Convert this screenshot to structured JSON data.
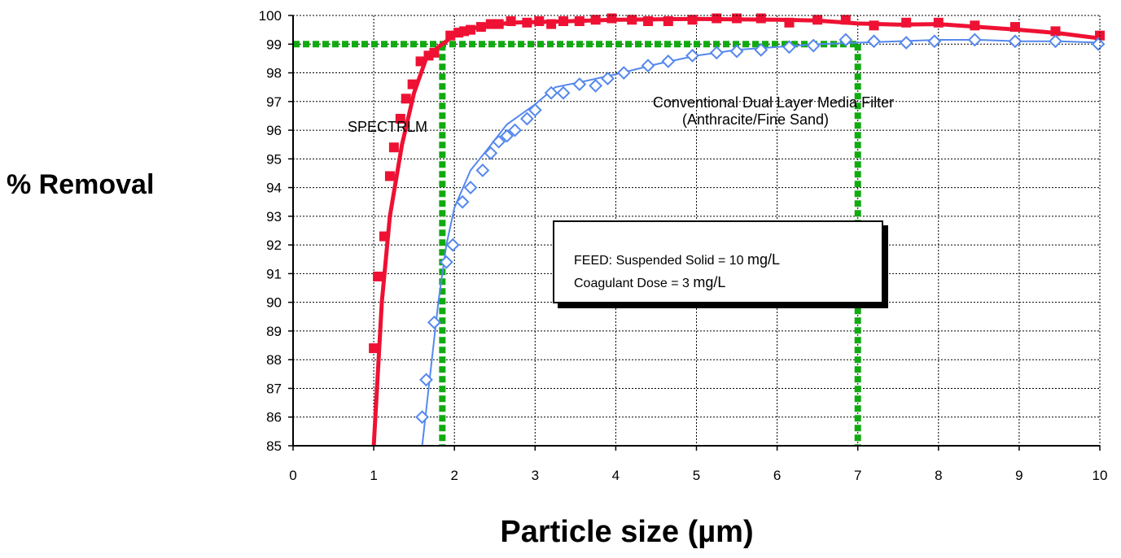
{
  "chart_data": {
    "type": "scatter",
    "xlabel": "Particle size (µm)",
    "ylabel": "% Removal",
    "xlim": [
      0,
      10
    ],
    "ylim": [
      85,
      100
    ],
    "x_ticks": [
      "0",
      "1",
      "2",
      "3",
      "4",
      "5",
      "6",
      "7",
      "8",
      "9",
      "10"
    ],
    "y_ticks": [
      "85",
      "86",
      "87",
      "88",
      "89",
      "90",
      "91",
      "92",
      "93",
      "94",
      "95",
      "96",
      "97",
      "98",
      "99",
      "100"
    ],
    "grid": true,
    "annotations": {
      "spectrlm_label": "SPECTRLM",
      "conventional_label_line1": "Conventional Dual Layer Media Filter",
      "conventional_label_line2": "(Anthracite/Fine Sand)",
      "feed_box": {
        "line1_prefix": "FEED: Suspended Solid = 10 ",
        "line1_unit": "mg/L",
        "line2_prefix": "Coagulant Dose = 3  ",
        "line2_unit": "mg/L"
      }
    },
    "reference_lines": {
      "color": "#11aa11",
      "y_level": 99,
      "x_values": [
        1.85,
        7.0
      ]
    },
    "series": [
      {
        "label_ref": "SPECTRLM",
        "color": "#ee1133",
        "marker": "square",
        "points": [
          [
            1.0,
            88.4
          ],
          [
            1.05,
            90.9
          ],
          [
            1.13,
            92.3
          ],
          [
            1.2,
            94.4
          ],
          [
            1.25,
            95.4
          ],
          [
            1.33,
            96.4
          ],
          [
            1.4,
            97.1
          ],
          [
            1.48,
            97.6
          ],
          [
            1.58,
            98.4
          ],
          [
            1.68,
            98.6
          ],
          [
            1.75,
            98.7
          ],
          [
            1.95,
            99.3
          ],
          [
            2.05,
            99.4
          ],
          [
            2.12,
            99.45
          ],
          [
            2.2,
            99.5
          ],
          [
            2.33,
            99.6
          ],
          [
            2.45,
            99.7
          ],
          [
            2.55,
            99.7
          ],
          [
            2.7,
            99.8
          ],
          [
            2.9,
            99.75
          ],
          [
            3.05,
            99.8
          ],
          [
            3.2,
            99.7
          ],
          [
            3.35,
            99.8
          ],
          [
            3.55,
            99.8
          ],
          [
            3.75,
            99.85
          ],
          [
            3.95,
            99.9
          ],
          [
            4.2,
            99.85
          ],
          [
            4.4,
            99.8
          ],
          [
            4.65,
            99.8
          ],
          [
            4.95,
            99.85
          ],
          [
            5.25,
            99.9
          ],
          [
            5.5,
            99.9
          ],
          [
            5.8,
            99.9
          ],
          [
            6.15,
            99.75
          ],
          [
            6.5,
            99.85
          ],
          [
            6.85,
            99.85
          ],
          [
            7.2,
            99.65
          ],
          [
            7.6,
            99.75
          ],
          [
            8.0,
            99.75
          ],
          [
            8.45,
            99.65
          ],
          [
            8.95,
            99.6
          ],
          [
            9.45,
            99.45
          ],
          [
            10.0,
            99.3
          ]
        ],
        "curve": [
          [
            1.0,
            85.0
          ],
          [
            1.1,
            90.0
          ],
          [
            1.2,
            93.0
          ],
          [
            1.35,
            95.5
          ],
          [
            1.5,
            97.3
          ],
          [
            1.65,
            98.5
          ],
          [
            1.8,
            98.9
          ],
          [
            1.9,
            99.1
          ],
          [
            2.0,
            99.35
          ],
          [
            2.3,
            99.6
          ],
          [
            2.7,
            99.75
          ],
          [
            3.2,
            99.78
          ],
          [
            4.0,
            99.85
          ],
          [
            5.0,
            99.88
          ],
          [
            6.0,
            99.85
          ],
          [
            6.5,
            99.82
          ],
          [
            7.0,
            99.72
          ],
          [
            7.5,
            99.68
          ],
          [
            8.0,
            99.7
          ],
          [
            8.5,
            99.6
          ],
          [
            9.0,
            99.5
          ],
          [
            9.5,
            99.38
          ],
          [
            10.0,
            99.2
          ]
        ]
      },
      {
        "label_ref": "Conventional Dual Layer Media Filter",
        "color": "#5588ee",
        "marker": "diamond",
        "points": [
          [
            1.6,
            86.0
          ],
          [
            1.65,
            87.3
          ],
          [
            1.75,
            89.3
          ],
          [
            1.9,
            91.4
          ],
          [
            1.98,
            92.0
          ],
          [
            2.1,
            93.5
          ],
          [
            2.2,
            94.0
          ],
          [
            2.35,
            94.6
          ],
          [
            2.45,
            95.2
          ],
          [
            2.55,
            95.6
          ],
          [
            2.65,
            95.8
          ],
          [
            2.75,
            96.0
          ],
          [
            2.9,
            96.4
          ],
          [
            3.0,
            96.7
          ],
          [
            3.2,
            97.3
          ],
          [
            3.35,
            97.3
          ],
          [
            3.55,
            97.6
          ],
          [
            3.75,
            97.55
          ],
          [
            3.9,
            97.8
          ],
          [
            4.1,
            98.0
          ],
          [
            4.4,
            98.25
          ],
          [
            4.65,
            98.4
          ],
          [
            4.95,
            98.6
          ],
          [
            5.25,
            98.7
          ],
          [
            5.5,
            98.75
          ],
          [
            5.8,
            98.8
          ],
          [
            6.15,
            98.9
          ],
          [
            6.45,
            98.95
          ],
          [
            6.85,
            99.15
          ],
          [
            7.2,
            99.1
          ],
          [
            7.6,
            99.05
          ],
          [
            7.95,
            99.1
          ],
          [
            8.45,
            99.15
          ],
          [
            8.95,
            99.1
          ],
          [
            9.45,
            99.1
          ],
          [
            9.98,
            99.0
          ]
        ],
        "curve": [
          [
            1.6,
            85.0
          ],
          [
            1.7,
            87.5
          ],
          [
            1.8,
            90.0
          ],
          [
            1.9,
            92.0
          ],
          [
            2.0,
            93.3
          ],
          [
            2.2,
            94.6
          ],
          [
            2.4,
            95.3
          ],
          [
            2.65,
            96.2
          ],
          [
            3.0,
            96.9
          ],
          [
            3.25,
            97.5
          ],
          [
            3.6,
            97.7
          ],
          [
            4.0,
            97.95
          ],
          [
            4.5,
            98.3
          ],
          [
            5.0,
            98.6
          ],
          [
            5.5,
            98.8
          ],
          [
            6.0,
            98.9
          ],
          [
            6.5,
            99.0
          ],
          [
            7.0,
            99.05
          ],
          [
            7.5,
            99.1
          ],
          [
            8.0,
            99.15
          ],
          [
            8.5,
            99.15
          ],
          [
            9.0,
            99.1
          ],
          [
            9.5,
            99.1
          ],
          [
            10.0,
            99.05
          ]
        ]
      }
    ]
  }
}
